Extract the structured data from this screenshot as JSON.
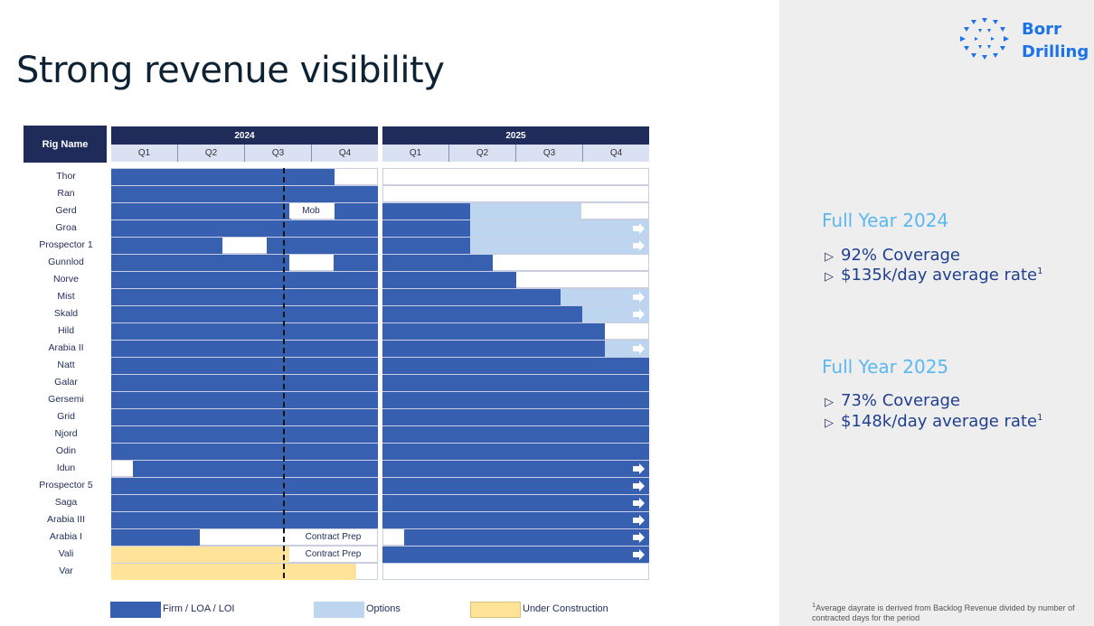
{
  "slide": {
    "title": "Strong revenue visibility",
    "logo": {
      "line1": "Borr",
      "line2": "Drilling",
      "color": "#1c73e8"
    }
  },
  "table": {
    "rig_header": "Rig Name",
    "years": [
      "2024",
      "2025"
    ],
    "quarters": [
      "Q1",
      "Q2",
      "Q3",
      "Q4"
    ],
    "rigs": [
      "Thor",
      "Ran",
      "Gerd",
      "Groa",
      "Prospector 1",
      "Gunnlod",
      "Norve",
      "Mist",
      "Skald",
      "Hild",
      "Arabia II",
      "Natt",
      "Galar",
      "Gersemi",
      "Grid",
      "Njord",
      "Odin",
      "Idun",
      "Prospector 5",
      "Saga",
      "Arabia III",
      "Arabia I",
      "Vali",
      "Var"
    ],
    "mob_label": "Mob",
    "contract_prep_label": "Contract Prep"
  },
  "legend": {
    "firm": "Firm / LOA / LOI",
    "options": "Options",
    "under_construction": "Under Construction"
  },
  "colors": {
    "firm": "#3761b0",
    "options": "#bdd5ee",
    "under_construction": "#ffe399",
    "header": "#1f2b59",
    "accent": "#5bb8f0"
  },
  "summary": {
    "fy2024": {
      "heading": "Full Year 2024",
      "coverage": "92% Coverage",
      "rate": "$135k/day average rate",
      "sup": "1"
    },
    "fy2025": {
      "heading": "Full Year 2025",
      "coverage": "73% Coverage",
      "rate": "$148k/day average rate",
      "sup": "1"
    }
  },
  "footnote": {
    "sup": "1",
    "text": "Average dayrate is derived from Backlog Revenue divided by number of contracted days for the period"
  }
}
